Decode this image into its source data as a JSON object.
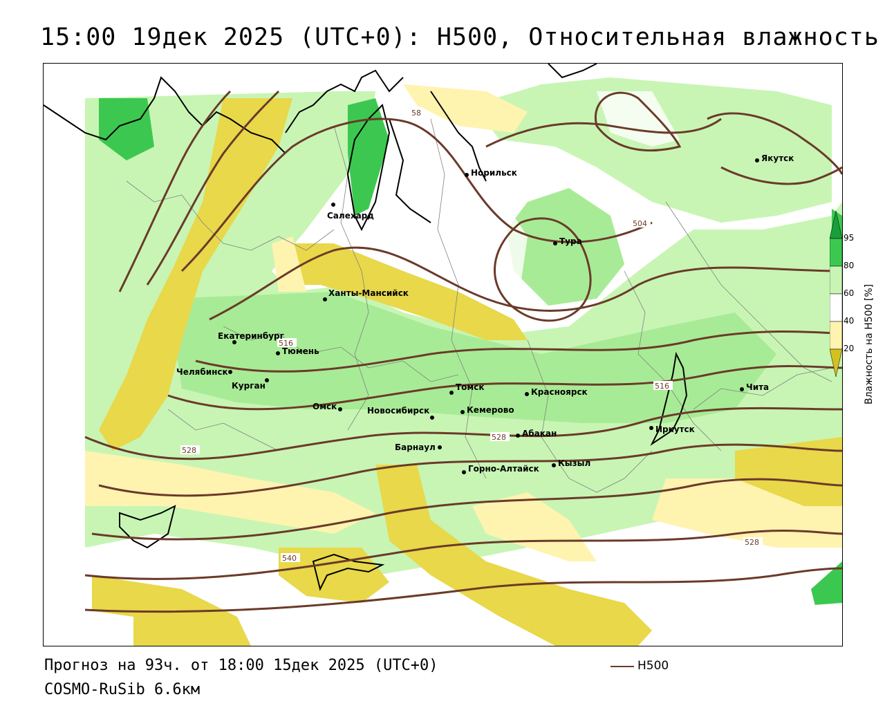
{
  "title": "15:00 19дек 2025 (UTC+0): H500, Относительная влажность",
  "footer": {
    "forecast": "Прогноз на 93ч. от 18:00 15дек 2025 (UTC+0)",
    "model": "COSMO-RuSib 6.6км",
    "legend_label": "H500"
  },
  "colorbar": {
    "title": "Влажность на H500 [%]",
    "ticks": [
      "95",
      "80",
      "60",
      "40",
      "20"
    ],
    "colors": [
      "#1a9e3a",
      "#3cc850",
      "#c8f5b4",
      "#ffffff",
      "#fff3b0",
      "#e8d84a",
      "#d4c020"
    ]
  },
  "cities": [
    {
      "name": "Норильск"
    },
    {
      "name": "Якутск"
    },
    {
      "name": "Салехард"
    },
    {
      "name": "Тура"
    },
    {
      "name": "Ханты-Мансийск"
    },
    {
      "name": "Екатеринбург"
    },
    {
      "name": "Тюмень"
    },
    {
      "name": "Челябинск"
    },
    {
      "name": "Курган"
    },
    {
      "name": "Омск"
    },
    {
      "name": "Новосибирск"
    },
    {
      "name": "Томск"
    },
    {
      "name": "Кемерово"
    },
    {
      "name": "Красноярск"
    },
    {
      "name": "Абакан"
    },
    {
      "name": "Барнаул"
    },
    {
      "name": "Горно-Алтайск"
    },
    {
      "name": "Кызыл"
    },
    {
      "name": "Иркутск"
    },
    {
      "name": "Чита"
    }
  ],
  "contour_labels": [
    "504",
    "516",
    "516",
    "528",
    "528",
    "528",
    "540",
    "58"
  ],
  "colors": {
    "contour": "#6b3a2a",
    "green_light": "#c8f5b4",
    "green_mid": "#a8eb96",
    "green_dark": "#3cc850",
    "yellow_light": "#fff3b0",
    "yellow_mid": "#e8d84a"
  }
}
